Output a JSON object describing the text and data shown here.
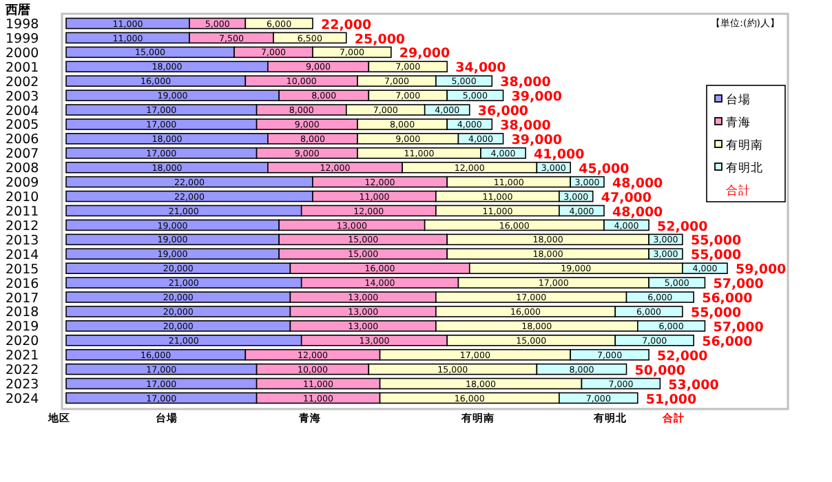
{
  "chart_data": {
    "type": "bar",
    "orientation": "horizontal",
    "stacked": true,
    "legend": "right",
    "ylabel": "西暦",
    "xlabel": "地区",
    "annotations": [
      "【単位:(約)人】",
      "合計"
    ],
    "categories": [
      "1998",
      "1999",
      "2000",
      "2001",
      "2002",
      "2003",
      "2004",
      "2005",
      "2006",
      "2007",
      "2008",
      "2009",
      "2010",
      "2011",
      "2012",
      "2013",
      "2014",
      "2015",
      "2016",
      "2017",
      "2018",
      "2019",
      "2020",
      "2021",
      "2022",
      "2023",
      "2024"
    ],
    "series": [
      {
        "name": "台場",
        "color": "#9999ff",
        "values": [
          11000,
          11000,
          15000,
          18000,
          16000,
          19000,
          17000,
          17000,
          18000,
          17000,
          18000,
          22000,
          22000,
          21000,
          19000,
          19000,
          19000,
          20000,
          21000,
          20000,
          20000,
          20000,
          21000,
          16000,
          17000,
          17000,
          17000
        ],
        "value_labels": [
          "11,000",
          "11,000",
          "15,000",
          "18,000",
          "16,000",
          "19,000",
          "17,000",
          "17,000",
          "18,000",
          "17,000",
          "18,000",
          "22,000",
          "22,000",
          "21,000",
          "19,000",
          "19,000",
          "19,000",
          "20,000",
          "21,000",
          "20,000",
          "20,000",
          "20,000",
          "21,000",
          "16,000",
          "17,000",
          "17,000",
          "17,000"
        ]
      },
      {
        "name": "青海",
        "color": "#ff99cc",
        "values": [
          5000,
          7500,
          7000,
          9000,
          10000,
          8000,
          8000,
          9000,
          8000,
          9000,
          12000,
          12000,
          11000,
          12000,
          13000,
          15000,
          15000,
          16000,
          14000,
          13000,
          13000,
          13000,
          13000,
          12000,
          10000,
          11000,
          11000
        ],
        "value_labels": [
          "5,000",
          "7,500",
          "7,000",
          "9,000",
          "10,000",
          "8,000",
          "8,000",
          "9,000",
          "8,000",
          "9,000",
          "12,000",
          "12,000",
          "11,000",
          "12,000",
          "13,000",
          "15,000",
          "15,000",
          "16,000",
          "14,000",
          "13,000",
          "13,000",
          "13,000",
          "13,000",
          "12,000",
          "10,000",
          "11,000",
          "11,000"
        ]
      },
      {
        "name": "有明南",
        "color": "#ffffcc",
        "values": [
          6000,
          6500,
          7000,
          7000,
          7000,
          7000,
          7000,
          8000,
          9000,
          11000,
          12000,
          11000,
          11000,
          11000,
          16000,
          18000,
          18000,
          19000,
          17000,
          17000,
          16000,
          18000,
          15000,
          17000,
          15000,
          18000,
          16000
        ],
        "value_labels": [
          "6,000",
          "6,500",
          "7,000",
          "7,000",
          "7,000",
          "7,000",
          "7,000",
          "8,000",
          "9,000",
          "11,000",
          "12,000",
          "11,000",
          "11,000",
          "11,000",
          "16,000",
          "18,000",
          "18,000",
          "19,000",
          "17,000",
          "17,000",
          "16,000",
          "18,000",
          "15,000",
          "17,000",
          "15,000",
          "18,000",
          "16,000"
        ]
      },
      {
        "name": "有明北",
        "color": "#ccffff",
        "values": [
          null,
          null,
          null,
          null,
          5000,
          5000,
          4000,
          4000,
          4000,
          4000,
          3000,
          3000,
          3000,
          4000,
          4000,
          3000,
          3000,
          4000,
          5000,
          6000,
          6000,
          6000,
          7000,
          7000,
          8000,
          7000,
          7000
        ],
        "value_labels": [
          null,
          null,
          null,
          null,
          "5,000",
          "5,000",
          "4,000",
          "4,000",
          "4,000",
          "4,000",
          "3,000",
          "3,000",
          "3,000",
          "4,000",
          "4,000",
          "3,000",
          "3,000",
          "4,000",
          "5,000",
          "6,000",
          "6,000",
          "6,000",
          "7,000",
          "7,000",
          "8,000",
          "7,000",
          "7,000"
        ]
      }
    ],
    "totals": [
      "22,000",
      "25,000",
      "29,000",
      "34,000",
      "38,000",
      "39,000",
      "36,000",
      "38,000",
      "39,000",
      "41,000",
      "45,000",
      "48,000",
      "47,000",
      "48,000",
      "52,000",
      "55,000",
      "55,000",
      "59,000",
      "57,000",
      "56,000",
      "55,000",
      "57,000",
      "56,000",
      "52,000",
      "50,000",
      "53,000",
      "51,000"
    ]
  }
}
